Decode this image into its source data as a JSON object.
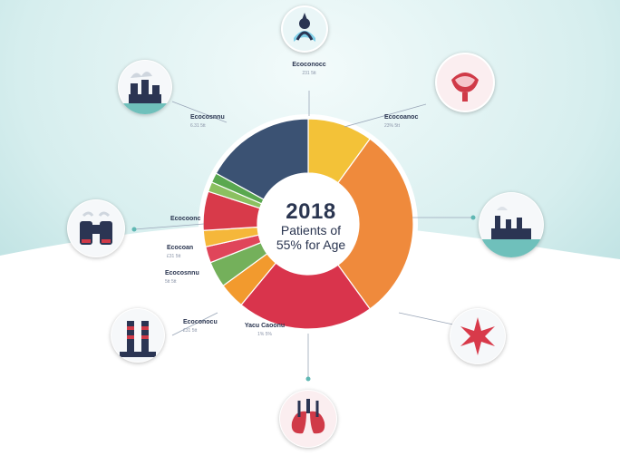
{
  "chart_data": {
    "type": "pie",
    "variant": "donut",
    "center_text": {
      "year": "2018",
      "line1": "Patients of",
      "line2": "55% for Age"
    },
    "slices": [
      {
        "value": 10.0,
        "color": "#f3c238"
      },
      {
        "value": 30.0,
        "color": "#ef8a3c"
      },
      {
        "value": 21.0,
        "color": "#d9344c"
      },
      {
        "value": 4.0,
        "color": "#f29a2e"
      },
      {
        "value": 4.0,
        "color": "#74b05b"
      },
      {
        "value": 2.5,
        "color": "#e0455a"
      },
      {
        "value": 2.5,
        "color": "#f5b73a"
      },
      {
        "value": 6.0,
        "color": "#d83a4a"
      },
      {
        "value": 1.5,
        "color": "#8bc060"
      },
      {
        "value": 1.5,
        "color": "#5aa84f"
      },
      {
        "value": 17.0,
        "color": "#3b5273"
      }
    ],
    "labels": [
      {
        "title": "Ecoconocc",
        "sub": "231 5tt"
      },
      {
        "title": "Yacu Caoonu",
        "sub": "1% 5%"
      },
      {
        "title": "Ecocoonc",
        "sub": ""
      },
      {
        "title": "Ecocoan",
        "sub": "£31 5tt"
      },
      {
        "title": "Ecocosnnu",
        "sub": "5tt 5tt"
      },
      {
        "title": "Ecoconocu",
        "sub": "£31 5tt"
      },
      {
        "title": "Ecocosnnu",
        "sub": "6.31 5tt"
      },
      {
        "title": "Ecocoanoc",
        "sub": "23% 5tt"
      }
    ]
  },
  "colors": {
    "background_teal": "#cfe9ea",
    "navy": "#2b3553",
    "teal": "#5fb7b3",
    "red": "#d03a48"
  },
  "icons": [
    "water-droplet-icon",
    "kidney-icon",
    "factory-smokestack-icon",
    "binoculars-icon",
    "factory-icon",
    "chimneys-icon",
    "virus-icon",
    "lungs-icon"
  ]
}
